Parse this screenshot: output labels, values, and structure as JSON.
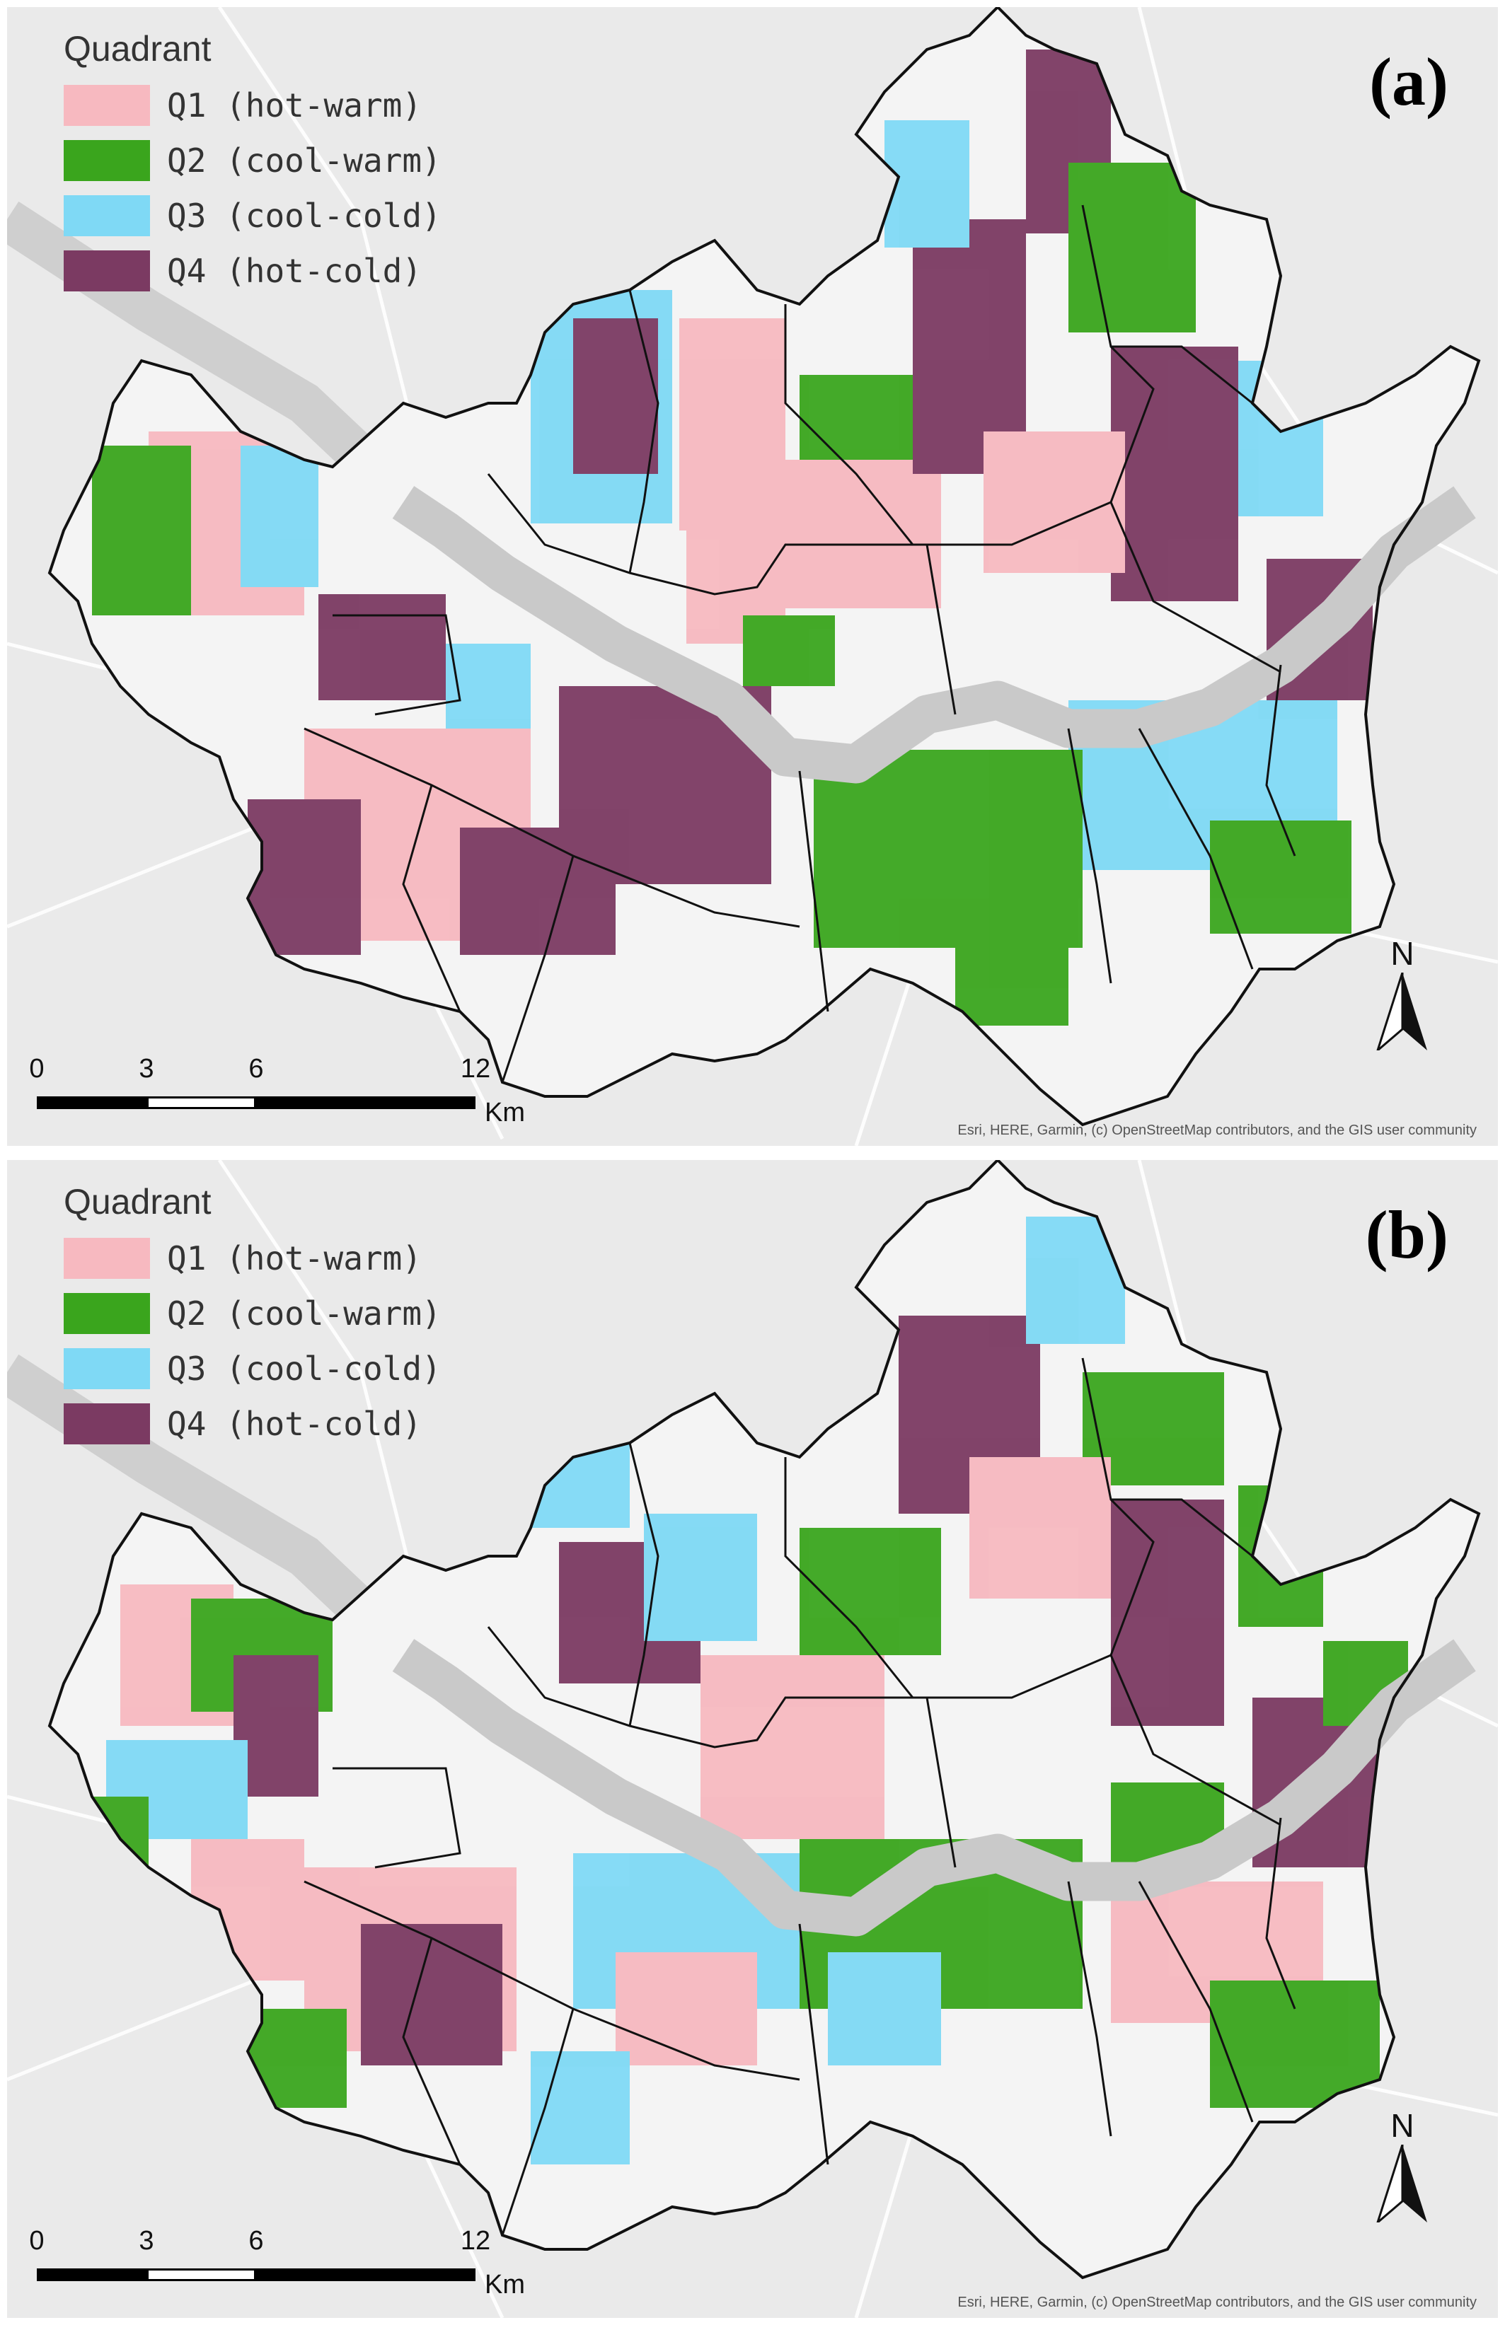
{
  "legend": {
    "title": "Quadrant",
    "items": [
      {
        "label": "Q1 (hot-warm)",
        "color": "#f7b9c0"
      },
      {
        "label": "Q2 (cool-warm)",
        "color": "#3aa51d"
      },
      {
        "label": "Q3 (cool-cold)",
        "color": "#7fd9f5"
      },
      {
        "label": "Q4 (hot-cold)",
        "color": "#7b3a62"
      }
    ]
  },
  "panels": [
    {
      "label": "(a)"
    },
    {
      "label": "(b)"
    }
  ],
  "scale": {
    "ticks": [
      "0",
      "3",
      "6",
      "12"
    ],
    "unit": "Km"
  },
  "north_arrow": {
    "letter": "N",
    "icon": "north-arrow-icon"
  },
  "attribution": "Esri, HERE, Garmin, (c) OpenStreetMap contributors, and the GIS user community",
  "colors": {
    "river": "#c9c9c9",
    "boundary": "#111111",
    "basemap": "#eaeaea"
  }
}
